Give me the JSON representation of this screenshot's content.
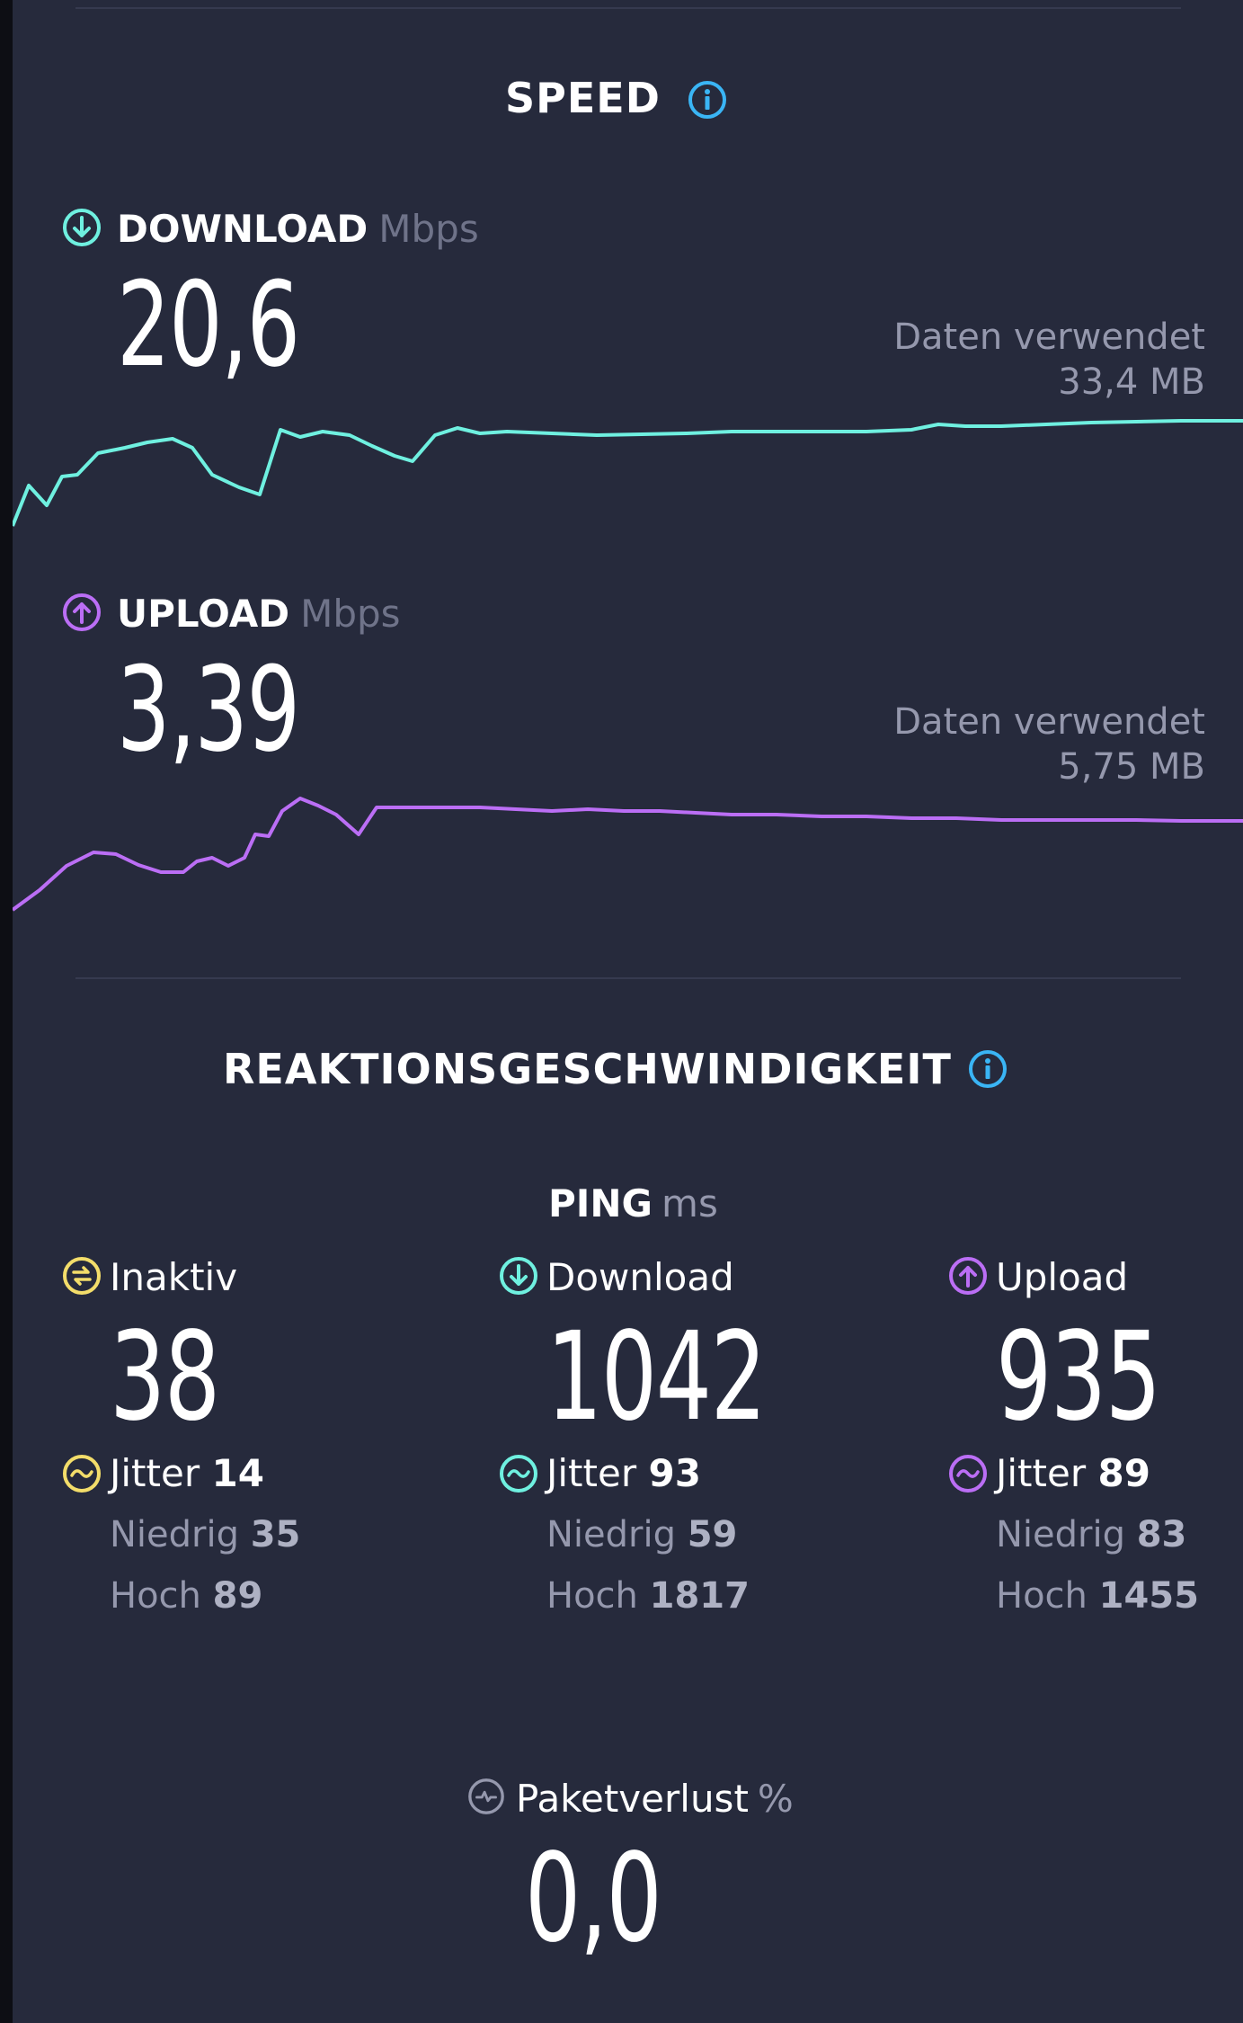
{
  "speed": {
    "title": "SPEED",
    "download": {
      "label": "DOWNLOAD",
      "unit": "Mbps",
      "value": "20,6",
      "data_used_label": "Daten verwendet",
      "data_used_value": "33,4 MB",
      "color": "#6ff0e0"
    },
    "upload": {
      "label": "UPLOAD",
      "unit": "Mbps",
      "value": "3,39",
      "data_used_label": "Daten verwendet",
      "data_used_value": "5,75 MB",
      "color": "#bb6ef5"
    }
  },
  "responsiveness": {
    "title": "REAKTIONSGESCHWINDIGKEIT",
    "ping_label": "PING",
    "ping_unit": "ms",
    "columns": [
      {
        "label": "Inaktiv",
        "value": "38",
        "jitter_label": "Jitter",
        "jitter_value": "14",
        "low_label": "Niedrig",
        "low_value": "35",
        "high_label": "Hoch",
        "high_value": "89",
        "icon": "idle-icon",
        "color": "#f3dd6a"
      },
      {
        "label": "Download",
        "value": "1042",
        "jitter_label": "Jitter",
        "jitter_value": "93",
        "low_label": "Niedrig",
        "low_value": "59",
        "high_label": "Hoch",
        "high_value": "1817",
        "icon": "download-arrow-icon",
        "color": "#6ff0e0"
      },
      {
        "label": "Upload",
        "value": "935",
        "jitter_label": "Jitter",
        "jitter_value": "89",
        "low_label": "Niedrig",
        "low_value": "83",
        "high_label": "Hoch",
        "high_value": "1455",
        "icon": "upload-arrow-icon",
        "color": "#bb6ef5"
      }
    ]
  },
  "packet_loss": {
    "label": "Paketverlust",
    "unit": "%",
    "value": "0,0"
  },
  "colors": {
    "background": "#262a3c",
    "info_accent": "#3ab5f5",
    "muted_text": "#9598ad"
  }
}
